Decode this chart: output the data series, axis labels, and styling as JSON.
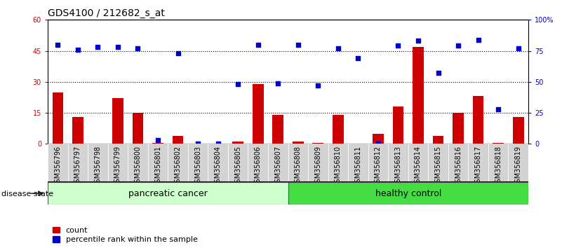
{
  "title": "GDS4100 / 212682_s_at",
  "samples": [
    "GSM356796",
    "GSM356797",
    "GSM356798",
    "GSM356799",
    "GSM356800",
    "GSM356801",
    "GSM356802",
    "GSM356803",
    "GSM356804",
    "GSM356805",
    "GSM356806",
    "GSM356807",
    "GSM356808",
    "GSM356809",
    "GSM356810",
    "GSM356811",
    "GSM356812",
    "GSM356813",
    "GSM356814",
    "GSM356815",
    "GSM356816",
    "GSM356817",
    "GSM356818",
    "GSM356819"
  ],
  "counts": [
    25,
    13,
    0,
    22,
    15,
    0.5,
    4,
    0,
    0,
    1,
    29,
    14,
    1,
    0.5,
    14,
    0,
    5,
    18,
    47,
    4,
    15,
    23,
    0.5,
    13
  ],
  "percentiles": [
    80,
    76,
    78,
    78,
    77,
    3,
    73,
    0,
    0,
    48,
    80,
    49,
    80,
    47,
    77,
    69,
    0,
    79,
    83,
    57,
    79,
    84,
    28,
    77
  ],
  "pancreatic_count": 12,
  "healthy_count": 12,
  "bar_color": "#CC0000",
  "dot_color": "#0000CC",
  "pancreatic_color": "#CCFFCC",
  "healthy_color": "#44DD44",
  "ylim_left": [
    0,
    60
  ],
  "ylim_right": [
    0,
    100
  ],
  "yticks_left": [
    0,
    15,
    30,
    45,
    60
  ],
  "ytick_labels_left": [
    "0",
    "15",
    "30",
    "45",
    "60"
  ],
  "yticks_right": [
    0,
    25,
    50,
    75,
    100
  ],
  "ytick_labels_right": [
    "0",
    "25",
    "50",
    "75",
    "100%"
  ],
  "hlines": [
    15,
    30,
    45
  ],
  "title_fontsize": 10,
  "tick_fontsize": 7,
  "label_fontsize": 8,
  "group_label_fontsize": 9,
  "disease_state_label": "disease state",
  "legend_count_label": "count",
  "legend_percentile_label": "percentile rank within the sample"
}
